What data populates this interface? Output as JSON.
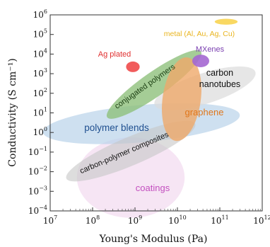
{
  "chart_data": {
    "type": "region-map",
    "xlabel": "Young's Modulus (Pa)",
    "ylabel": "Conductivity (S cm⁻¹)",
    "x_scale": "log",
    "y_scale": "log",
    "xlim": [
      10000000.0,
      1000000000000.0
    ],
    "ylim": [
      0.0001,
      1000000.0
    ],
    "x_ticks": [
      {
        "value": 10000000.0,
        "base": "10",
        "exp": "7"
      },
      {
        "value": 100000000.0,
        "base": "10",
        "exp": "8"
      },
      {
        "value": 1000000000.0,
        "base": "10",
        "exp": "9"
      },
      {
        "value": 10000000000.0,
        "base": "10",
        "exp": "10"
      },
      {
        "value": 100000000000.0,
        "base": "10",
        "exp": "11"
      },
      {
        "value": 1000000000000.0,
        "base": "10",
        "exp": "12"
      }
    ],
    "y_ticks": [
      {
        "value": 1000000.0,
        "base": "10",
        "exp": "6"
      },
      {
        "value": 100000.0,
        "base": "10",
        "exp": "5"
      },
      {
        "value": 10000.0,
        "base": "10",
        "exp": "4"
      },
      {
        "value": 1000.0,
        "base": "10",
        "exp": "3"
      },
      {
        "value": 100.0,
        "base": "10",
        "exp": "2"
      },
      {
        "value": 10.0,
        "base": "10",
        "exp": "1"
      },
      {
        "value": 1.0,
        "base": "10",
        "exp": "0"
      },
      {
        "value": 0.1,
        "base": "10",
        "exp": "−1"
      },
      {
        "value": 0.01,
        "base": "10",
        "exp": "−2"
      },
      {
        "value": 0.001,
        "base": "10",
        "exp": "−3"
      },
      {
        "value": 0.0001,
        "base": "10",
        "exp": "−4"
      }
    ],
    "regions": [
      {
        "name": "coatings",
        "color": "#f3dcf0",
        "text_color": "#c34fbf",
        "log_center": [
          8.9,
          -2.3
        ],
        "log_radii": [
          1.27,
          2.05
        ],
        "angle_deg": 0
      },
      {
        "name": "polymer blends",
        "color": "#b9d3ea",
        "text_color": "#1f4f8f",
        "log_center": [
          9.15,
          0.45
        ],
        "log_radii": [
          2.33,
          0.95
        ],
        "angle_deg": -5
      },
      {
        "name": "carbon-polymer composites",
        "color": "#c7c7c7",
        "text_color": "#111111",
        "log_center": [
          8.9,
          -0.95
        ],
        "log_radii": [
          1.65,
          0.72
        ],
        "angle_deg": -23
      },
      {
        "name": "carbon nanotubes",
        "color": "#dcdcdc",
        "text_color": "#111111",
        "log_center": [
          10.65,
          2.25
        ],
        "log_radii": [
          1.25,
          0.78
        ],
        "angle_deg": -18
      },
      {
        "name": "conjugated polymers",
        "color": "#8fc17c",
        "text_color": "#1b3f12",
        "log_center": [
          9.45,
          2.45
        ],
        "log_radii": [
          1.35,
          0.62
        ],
        "angle_deg": -35
      },
      {
        "name": "graphene",
        "color": "#efa96a",
        "text_color": "#e0761a",
        "log_center": [
          10.1,
          1.7
        ],
        "log_radii": [
          0.45,
          2.15
        ],
        "angle_deg": 8
      },
      {
        "name": "Ag plated",
        "color": "#ef4a4a",
        "text_color": "#e03030",
        "log_center": [
          8.95,
          3.35
        ],
        "log_radii": [
          0.16,
          0.27
        ],
        "angle_deg": 0
      },
      {
        "name": "MXenes",
        "color": "#a467d1",
        "text_color": "#7a3fb0",
        "log_center": [
          10.55,
          3.65
        ],
        "log_radii": [
          0.2,
          0.32
        ],
        "angle_deg": 0
      },
      {
        "name": "metal (Al, Au, Ag, Cu)",
        "color": "#f9d862",
        "text_color": "#e9b520",
        "log_center": [
          11.15,
          5.65
        ],
        "log_radii": [
          0.27,
          0.15
        ],
        "angle_deg": 0
      }
    ]
  }
}
